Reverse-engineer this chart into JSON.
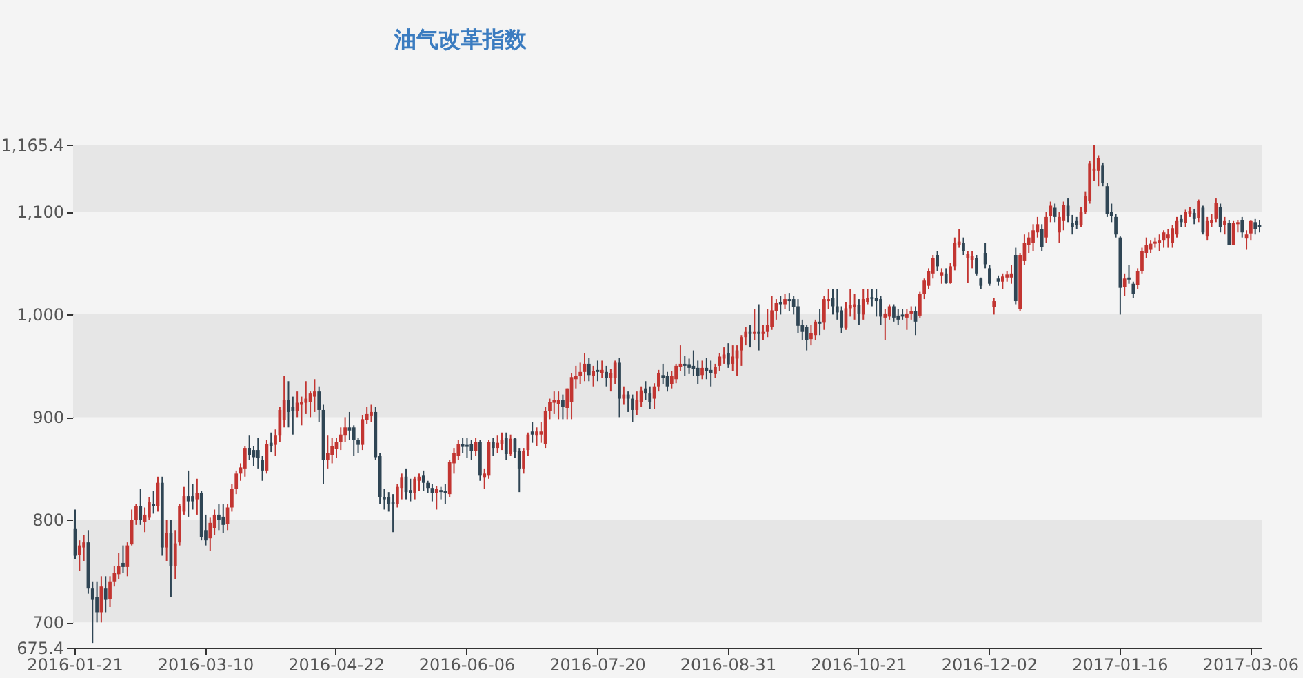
{
  "chart_data": {
    "type": "candlestick",
    "title": "油气改革指数",
    "categories": [
      "2016-01-21",
      null,
      null,
      null,
      null,
      null,
      null,
      null,
      null,
      null,
      null,
      null,
      null,
      null,
      null,
      null,
      null,
      null,
      null,
      null,
      null,
      null,
      null,
      null,
      null,
      null,
      null,
      null,
      null,
      null,
      "2016-03-10",
      null,
      null,
      null,
      null,
      null,
      null,
      null,
      null,
      null,
      null,
      null,
      null,
      null,
      null,
      null,
      null,
      null,
      null,
      null,
      null,
      null,
      null,
      null,
      null,
      null,
      null,
      null,
      null,
      null,
      "2016-04-22",
      null,
      null,
      null,
      null,
      null,
      null,
      null,
      null,
      null,
      null,
      null,
      null,
      null,
      null,
      null,
      null,
      null,
      null,
      null,
      null,
      null,
      null,
      null,
      null,
      null,
      null,
      null,
      null,
      null,
      "2016-06-06",
      null,
      null,
      null,
      null,
      null,
      null,
      null,
      null,
      null,
      null,
      null,
      null,
      null,
      null,
      null,
      null,
      null,
      null,
      null,
      null,
      null,
      null,
      null,
      null,
      null,
      null,
      null,
      null,
      null,
      "2016-07-20",
      null,
      null,
      null,
      null,
      null,
      null,
      null,
      null,
      null,
      null,
      null,
      null,
      null,
      null,
      null,
      null,
      null,
      null,
      null,
      null,
      null,
      null,
      null,
      null,
      null,
      null,
      null,
      null,
      null,
      "2016-08-31",
      null,
      null,
      null,
      null,
      null,
      null,
      null,
      null,
      null,
      null,
      null,
      null,
      null,
      null,
      null,
      null,
      null,
      null,
      null,
      null,
      null,
      null,
      null,
      null,
      null,
      null,
      null,
      null,
      null,
      "2016-10-21",
      null,
      null,
      null,
      null,
      null,
      null,
      null,
      null,
      null,
      null,
      null,
      null,
      null,
      null,
      null,
      null,
      null,
      null,
      null,
      null,
      null,
      null,
      null,
      null,
      null,
      null,
      null,
      null,
      null,
      "2016-12-02",
      null,
      null,
      null,
      null,
      null,
      null,
      null,
      null,
      null,
      null,
      null,
      null,
      null,
      null,
      null,
      null,
      null,
      null,
      null,
      null,
      null,
      null,
      null,
      null,
      null,
      null,
      null,
      null,
      null,
      "2017-01-16",
      null,
      null,
      null,
      null,
      null,
      null,
      null,
      null,
      null,
      null,
      null,
      null,
      null,
      null,
      null,
      null,
      null,
      null,
      null,
      null,
      null,
      null,
      null,
      null,
      null,
      null,
      null,
      null,
      null,
      "2017-03-06",
      null,
      null
    ],
    "ohlc": [
      [
        791,
        810,
        762,
        765
      ],
      [
        766,
        780,
        750,
        775
      ],
      [
        773,
        785,
        760,
        778
      ],
      [
        778,
        790,
        728,
        733
      ],
      [
        733,
        740,
        680,
        722
      ],
      [
        725,
        740,
        700,
        710
      ],
      [
        710,
        745,
        700,
        735
      ],
      [
        733,
        745,
        710,
        722
      ],
      [
        723,
        745,
        715,
        740
      ],
      [
        740,
        755,
        735,
        748
      ],
      [
        747,
        768,
        742,
        755
      ],
      [
        758,
        775,
        748,
        754
      ],
      [
        754,
        778,
        745,
        775
      ],
      [
        776,
        810,
        775,
        800
      ],
      [
        800,
        815,
        795,
        813
      ],
      [
        813,
        830,
        795,
        800
      ],
      [
        798,
        812,
        788,
        805
      ],
      [
        802,
        822,
        800,
        817
      ],
      [
        815,
        828,
        806,
        813
      ],
      [
        813,
        842,
        808,
        836
      ],
      [
        836,
        842,
        765,
        773
      ],
      [
        773,
        800,
        760,
        787
      ],
      [
        787,
        800,
        725,
        755
      ],
      [
        755,
        790,
        742,
        777
      ],
      [
        778,
        815,
        775,
        813
      ],
      [
        808,
        832,
        805,
        823
      ],
      [
        823,
        848,
        803,
        818
      ],
      [
        823,
        835,
        810,
        818
      ],
      [
        820,
        840,
        805,
        826
      ],
      [
        826,
        828,
        780,
        783
      ],
      [
        790,
        805,
        775,
        780
      ],
      [
        782,
        802,
        770,
        797
      ],
      [
        792,
        810,
        785,
        805
      ],
      [
        805,
        815,
        790,
        800
      ],
      [
        803,
        815,
        787,
        795
      ],
      [
        796,
        815,
        790,
        812
      ],
      [
        812,
        835,
        808,
        830
      ],
      [
        830,
        848,
        825,
        845
      ],
      [
        845,
        855,
        838,
        851
      ],
      [
        850,
        872,
        842,
        870
      ],
      [
        870,
        882,
        858,
        863
      ],
      [
        868,
        872,
        852,
        861
      ],
      [
        868,
        880,
        850,
        860
      ],
      [
        858,
        862,
        838,
        848
      ],
      [
        848,
        878,
        845,
        874
      ],
      [
        875,
        885,
        866,
        872
      ],
      [
        873,
        888,
        862,
        882
      ],
      [
        882,
        910,
        876,
        907
      ],
      [
        897,
        940,
        890,
        917
      ],
      [
        917,
        935,
        890,
        905
      ],
      [
        910,
        920,
        883,
        906
      ],
      [
        906,
        925,
        900,
        914
      ],
      [
        912,
        920,
        892,
        915
      ],
      [
        914,
        935,
        903,
        918
      ],
      [
        915,
        925,
        900,
        923
      ],
      [
        920,
        937,
        905,
        925
      ],
      [
        925,
        930,
        895,
        907
      ],
      [
        907,
        912,
        835,
        858
      ],
      [
        858,
        882,
        850,
        865
      ],
      [
        863,
        880,
        855,
        872
      ],
      [
        869,
        880,
        860,
        876
      ],
      [
        876,
        890,
        868,
        883
      ],
      [
        882,
        900,
        876,
        890
      ],
      [
        890,
        905,
        878,
        887
      ],
      [
        890,
        892,
        862,
        878
      ],
      [
        878,
        880,
        865,
        873
      ],
      [
        873,
        902,
        868,
        898
      ],
      [
        897,
        910,
        893,
        903
      ],
      [
        901,
        912,
        895,
        905
      ],
      [
        905,
        910,
        858,
        861
      ],
      [
        862,
        865,
        815,
        822
      ],
      [
        822,
        830,
        810,
        820
      ],
      [
        822,
        827,
        808,
        815
      ],
      [
        817,
        825,
        788,
        815
      ],
      [
        815,
        835,
        812,
        832
      ],
      [
        831,
        845,
        820,
        841
      ],
      [
        842,
        850,
        820,
        827
      ],
      [
        829,
        840,
        818,
        826
      ],
      [
        826,
        842,
        820,
        840
      ],
      [
        838,
        845,
        828,
        842
      ],
      [
        843,
        848,
        828,
        836
      ],
      [
        836,
        838,
        826,
        831
      ],
      [
        831,
        835,
        818,
        826
      ],
      [
        826,
        833,
        810,
        830
      ],
      [
        829,
        832,
        820,
        827
      ],
      [
        828,
        835,
        815,
        826
      ],
      [
        825,
        858,
        822,
        856
      ],
      [
        855,
        870,
        845,
        865
      ],
      [
        862,
        878,
        858,
        874
      ],
      [
        874,
        880,
        865,
        871
      ],
      [
        873,
        880,
        860,
        871
      ],
      [
        874,
        878,
        858,
        867
      ],
      [
        867,
        880,
        862,
        876
      ],
      [
        876,
        878,
        838,
        843
      ],
      [
        841,
        850,
        830,
        845
      ],
      [
        843,
        878,
        840,
        876
      ],
      [
        876,
        880,
        862,
        870
      ],
      [
        870,
        882,
        865,
        875
      ],
      [
        874,
        885,
        868,
        878
      ],
      [
        880,
        885,
        858,
        864
      ],
      [
        864,
        883,
        862,
        879
      ],
      [
        879,
        880,
        860,
        866
      ],
      [
        867,
        870,
        827,
        850
      ],
      [
        850,
        870,
        845,
        867
      ],
      [
        868,
        885,
        862,
        883
      ],
      [
        886,
        895,
        875,
        883
      ],
      [
        882,
        890,
        872,
        886
      ],
      [
        883,
        895,
        875,
        886
      ],
      [
        874,
        910,
        870,
        906
      ],
      [
        906,
        918,
        898,
        915
      ],
      [
        914,
        925,
        903,
        917
      ],
      [
        913,
        925,
        898,
        917
      ],
      [
        917,
        922,
        898,
        910
      ],
      [
        909,
        928,
        898,
        928
      ],
      [
        915,
        943,
        898,
        939
      ],
      [
        937,
        950,
        928,
        940
      ],
      [
        940,
        953,
        932,
        944
      ],
      [
        944,
        962,
        935,
        952
      ],
      [
        952,
        958,
        935,
        941
      ],
      [
        940,
        950,
        930,
        945
      ],
      [
        946,
        955,
        935,
        944
      ],
      [
        943,
        955,
        938,
        946
      ],
      [
        944,
        950,
        930,
        938
      ],
      [
        938,
        947,
        925,
        943
      ],
      [
        938,
        955,
        932,
        953
      ],
      [
        953,
        958,
        900,
        918
      ],
      [
        918,
        930,
        912,
        922
      ],
      [
        922,
        925,
        905,
        918
      ],
      [
        918,
        922,
        895,
        907
      ],
      [
        907,
        925,
        902,
        917
      ],
      [
        915,
        930,
        910,
        926
      ],
      [
        928,
        935,
        917,
        923
      ],
      [
        923,
        930,
        908,
        915
      ],
      [
        918,
        933,
        908,
        930
      ],
      [
        930,
        946,
        925,
        943
      ],
      [
        941,
        952,
        932,
        938
      ],
      [
        940,
        944,
        925,
        930
      ],
      [
        932,
        945,
        928,
        940
      ],
      [
        937,
        952,
        933,
        950
      ],
      [
        949,
        970,
        945,
        952
      ],
      [
        952,
        960,
        940,
        950
      ],
      [
        951,
        957,
        942,
        948
      ],
      [
        950,
        965,
        940,
        947
      ],
      [
        948,
        955,
        932,
        940
      ],
      [
        941,
        955,
        937,
        948
      ],
      [
        948,
        958,
        937,
        945
      ],
      [
        946,
        955,
        930,
        943
      ],
      [
        942,
        952,
        938,
        949
      ],
      [
        950,
        962,
        945,
        959
      ],
      [
        957,
        968,
        952,
        961
      ],
      [
        962,
        972,
        948,
        951
      ],
      [
        952,
        970,
        945,
        959
      ],
      [
        957,
        970,
        940,
        965
      ],
      [
        965,
        980,
        950,
        978
      ],
      [
        978,
        988,
        970,
        983
      ],
      [
        983,
        990,
        968,
        981
      ],
      [
        981,
        1005,
        975,
        983
      ],
      [
        983,
        1010,
        965,
        981
      ],
      [
        981,
        990,
        975,
        983
      ],
      [
        983,
        1005,
        978,
        990
      ],
      [
        988,
        1018,
        985,
        1004
      ],
      [
        1003,
        1015,
        995,
        1011
      ],
      [
        1012,
        1018,
        1000,
        1010
      ],
      [
        1010,
        1020,
        1005,
        1015
      ],
      [
        1015,
        1021,
        1003,
        1013
      ],
      [
        1015,
        1018,
        1000,
        1007
      ],
      [
        1008,
        1015,
        982,
        989
      ],
      [
        990,
        995,
        975,
        983
      ],
      [
        988,
        990,
        965,
        975
      ],
      [
        976,
        990,
        970,
        982
      ],
      [
        980,
        995,
        975,
        993
      ],
      [
        993,
        1005,
        980,
        991
      ],
      [
        992,
        1018,
        985,
        1015
      ],
      [
        1013,
        1025,
        1005,
        1015
      ],
      [
        1016,
        1025,
        1000,
        1008
      ],
      [
        1008,
        1025,
        995,
        1002
      ],
      [
        1004,
        1008,
        982,
        987
      ],
      [
        987,
        1012,
        985,
        1006
      ],
      [
        1006,
        1025,
        998,
        1009
      ],
      [
        1007,
        1020,
        995,
        1010
      ],
      [
        1009,
        1015,
        990,
        1001
      ],
      [
        1000,
        1025,
        995,
        1015
      ],
      [
        1012,
        1025,
        1010,
        1016
      ],
      [
        1017,
        1025,
        1008,
        1015
      ],
      [
        1016,
        1025,
        998,
        1013
      ],
      [
        1015,
        1018,
        990,
        998
      ],
      [
        997,
        1005,
        975,
        1001
      ],
      [
        998,
        1010,
        995,
        1008
      ],
      [
        1008,
        1010,
        993,
        997
      ],
      [
        999,
        1005,
        990,
        995
      ],
      [
        1000,
        1005,
        995,
        998
      ],
      [
        997,
        1005,
        985,
        1001
      ],
      [
        1001,
        1008,
        995,
        1003
      ],
      [
        1003,
        1008,
        980,
        993
      ],
      [
        999,
        1022,
        997,
        1020
      ],
      [
        1020,
        1035,
        1015,
        1033
      ],
      [
        1028,
        1045,
        1025,
        1042
      ],
      [
        1040,
        1058,
        1035,
        1055
      ],
      [
        1058,
        1062,
        1042,
        1047
      ],
      [
        1038,
        1045,
        1030,
        1041
      ],
      [
        1040,
        1045,
        1030,
        1031
      ],
      [
        1031,
        1050,
        1030,
        1047
      ],
      [
        1047,
        1075,
        1043,
        1070
      ],
      [
        1068,
        1083,
        1065,
        1071
      ],
      [
        1070,
        1075,
        1058,
        1062
      ],
      [
        1055,
        1062,
        1031,
        1059
      ],
      [
        1053,
        1062,
        1045,
        1057
      ],
      [
        1055,
        1058,
        1038,
        1040
      ],
      [
        1035,
        1036,
        1025,
        1028
      ],
      [
        1060,
        1070,
        1045,
        1049
      ],
      [
        1045,
        1048,
        1028,
        1030
      ],
      [
        1007,
        1016,
        1000,
        1013
      ],
      [
        1035,
        1038,
        1028,
        1032
      ],
      [
        1032,
        1040,
        1025,
        1037
      ],
      [
        1036,
        1042,
        1032,
        1039
      ],
      [
        1036,
        1048,
        1030,
        1040
      ],
      [
        1058,
        1065,
        1010,
        1013
      ],
      [
        1005,
        1060,
        1003,
        1058
      ],
      [
        1052,
        1078,
        1048,
        1070
      ],
      [
        1068,
        1080,
        1060,
        1075
      ],
      [
        1070,
        1088,
        1062,
        1082
      ],
      [
        1080,
        1095,
        1075,
        1088
      ],
      [
        1083,
        1088,
        1062,
        1066
      ],
      [
        1075,
        1100,
        1070,
        1095
      ],
      [
        1096,
        1110,
        1090,
        1106
      ],
      [
        1104,
        1108,
        1090,
        1095
      ],
      [
        1080,
        1100,
        1070,
        1095
      ],
      [
        1091,
        1110,
        1082,
        1107
      ],
      [
        1106,
        1113,
        1090,
        1096
      ],
      [
        1089,
        1097,
        1078,
        1085
      ],
      [
        1091,
        1095,
        1083,
        1087
      ],
      [
        1087,
        1105,
        1085,
        1100
      ],
      [
        1100,
        1120,
        1098,
        1115
      ],
      [
        1111,
        1150,
        1108,
        1147
      ],
      [
        1140,
        1165,
        1130,
        1142
      ],
      [
        1140,
        1155,
        1125,
        1152
      ],
      [
        1145,
        1148,
        1125,
        1128
      ],
      [
        1125,
        1128,
        1095,
        1098
      ],
      [
        1100,
        1108,
        1090,
        1096
      ],
      [
        1095,
        1098,
        1075,
        1078
      ],
      [
        1075,
        1076,
        1000,
        1026
      ],
      [
        1027,
        1040,
        1018,
        1035
      ],
      [
        1036,
        1048,
        1030,
        1034
      ],
      [
        1030,
        1032,
        1016,
        1020
      ],
      [
        1029,
        1045,
        1025,
        1042
      ],
      [
        1042,
        1065,
        1040,
        1062
      ],
      [
        1060,
        1075,
        1055,
        1068
      ],
      [
        1063,
        1072,
        1060,
        1069
      ],
      [
        1069,
        1075,
        1065,
        1071
      ],
      [
        1070,
        1078,
        1062,
        1072
      ],
      [
        1072,
        1082,
        1065,
        1080
      ],
      [
        1074,
        1083,
        1065,
        1078
      ],
      [
        1070,
        1087,
        1065,
        1084
      ],
      [
        1078,
        1095,
        1075,
        1091
      ],
      [
        1093,
        1097,
        1085,
        1090
      ],
      [
        1089,
        1102,
        1085,
        1100
      ],
      [
        1098,
        1105,
        1095,
        1101
      ],
      [
        1099,
        1103,
        1088,
        1093
      ],
      [
        1094,
        1112,
        1090,
        1111
      ],
      [
        1104,
        1106,
        1078,
        1080
      ],
      [
        1076,
        1095,
        1072,
        1091
      ],
      [
        1089,
        1098,
        1085,
        1092
      ],
      [
        1093,
        1113,
        1090,
        1109
      ],
      [
        1105,
        1108,
        1080,
        1085
      ],
      [
        1087,
        1095,
        1078,
        1091
      ],
      [
        1089,
        1092,
        1068,
        1068
      ],
      [
        1068,
        1091,
        1068,
        1089
      ],
      [
        1088,
        1092,
        1080,
        1090
      ],
      [
        1092,
        1095,
        1075,
        1080
      ],
      [
        1074,
        1082,
        1063,
        1078
      ],
      [
        1079,
        1092,
        1072,
        1091
      ],
      [
        1090,
        1093,
        1078,
        1083
      ],
      [
        1087,
        1092,
        1080,
        1085
      ]
    ],
    "colors": [
      "#2f4554",
      "#c23531",
      "#c23531",
      "#2f4554",
      "#2f4554",
      "#2f4554",
      "#c23531",
      "#2f4554",
      "#c23531",
      "#c23531",
      "#c23531",
      "#2f4554",
      "#c23531",
      "#c23531",
      "#c23531",
      "#2f4554",
      "#c23531",
      "#c23531",
      "#2f4554",
      "#c23531",
      "#2f4554",
      "#c23531",
      "#2f4554",
      "#c23531",
      "#c23531",
      "#c23531",
      "#2f4554",
      "#2f4554",
      "#c23531",
      "#2f4554",
      "#2f4554",
      "#c23531",
      "#c23531",
      "#2f4554",
      "#2f4554",
      "#c23531",
      "#c23531",
      "#c23531",
      "#c23531",
      "#c23531",
      "#2f4554",
      "#2f4554",
      "#2f4554",
      "#2f4554",
      "#c23531",
      "#2f4554",
      "#c23531",
      "#c23531",
      "#c23531",
      "#2f4554",
      "#2f4554",
      "#c23531",
      "#c23531",
      "#c23531",
      "#c23531",
      "#c23531",
      "#2f4554",
      "#2f4554",
      "#c23531",
      "#c23531",
      "#c23531",
      "#c23531",
      "#c23531",
      "#2f4554",
      "#2f4554",
      "#2f4554",
      "#c23531",
      "#c23531",
      "#c23531",
      "#2f4554",
      "#2f4554",
      "#2f4554",
      "#2f4554",
      "#2f4554",
      "#c23531",
      "#c23531",
      "#2f4554",
      "#2f4554",
      "#c23531",
      "#c23531",
      "#2f4554",
      "#2f4554",
      "#2f4554",
      "#c23531",
      "#2f4554",
      "#2f4554",
      "#c23531",
      "#c23531",
      "#c23531",
      "#2f4554",
      "#2f4554",
      "#2f4554",
      "#c23531",
      "#2f4554",
      "#c23531",
      "#c23531",
      "#2f4554",
      "#c23531",
      "#c23531",
      "#2f4554",
      "#c23531",
      "#2f4554",
      "#2f4554",
      "#c23531",
      "#c23531",
      "#2f4554",
      "#c23531",
      "#c23531",
      "#c23531",
      "#c23531",
      "#c23531",
      "#c23531",
      "#2f4554",
      "#c23531",
      "#c23531",
      "#c23531",
      "#c23531",
      "#c23531",
      "#2f4554",
      "#c23531",
      "#2f4554",
      "#c23531",
      "#2f4554",
      "#c23531",
      "#c23531",
      "#2f4554",
      "#c23531",
      "#2f4554",
      "#2f4554",
      "#c23531",
      "#c23531",
      "#2f4554",
      "#2f4554",
      "#c23531",
      "#c23531",
      "#2f4554",
      "#2f4554",
      "#c23531",
      "#c23531",
      "#c23531",
      "#2f4554",
      "#2f4554",
      "#2f4554",
      "#2f4554",
      "#c23531",
      "#2f4554",
      "#2f4554",
      "#c23531",
      "#c23531",
      "#c23531",
      "#2f4554",
      "#c23531",
      "#c23531",
      "#c23531",
      "#c23531",
      "#2f4554",
      "#c23531",
      "#2f4554",
      "#c23531",
      "#c23531",
      "#c23531",
      "#c23531",
      "#2f4554",
      "#c23531",
      "#2f4554",
      "#2f4554",
      "#2f4554",
      "#2f4554",
      "#2f4554",
      "#c23531",
      "#c23531",
      "#2f4554",
      "#c23531",
      "#c23531",
      "#2f4554",
      "#2f4554",
      "#2f4554",
      "#c23531",
      "#c23531",
      "#c23531",
      "#2f4554",
      "#c23531",
      "#c23531",
      "#2f4554",
      "#2f4554",
      "#2f4554",
      "#c23531",
      "#c23531",
      "#2f4554",
      "#2f4554",
      "#2f4554",
      "#c23531",
      "#c23531",
      "#2f4554",
      "#c23531",
      "#c23531",
      "#c23531",
      "#c23531",
      "#2f4554",
      "#c23531",
      "#2f4554",
      "#c23531",
      "#c23531",
      "#c23531",
      "#2f4554",
      "#c23531",
      "#c23531",
      "#2f4554",
      "#2f4554",
      "#2f4554",
      "#2f4554",
      "#c23531",
      "#2f4554",
      "#c23531",
      "#c23531",
      "#c23531",
      "#2f4554",
      "#c23531",
      "#c23531",
      "#c23531",
      "#c23531",
      "#c23531",
      "#2f4554",
      "#c23531",
      "#c23531",
      "#2f4554",
      "#c23531",
      "#c23531",
      "#2f4554",
      "#2f4554",
      "#2f4554",
      "#c23531",
      "#c23531",
      "#c23531",
      "#c23531",
      "#c23531",
      "#2f4554",
      "#2f4554",
      "#2f4554",
      "#2f4554",
      "#2f4554",
      "#c23531",
      "#2f4554",
      "#2f4554",
      "#c23531",
      "#c23531",
      "#c23531",
      "#c23531",
      "#c23531",
      "#c23531",
      "#c23531",
      "#c23531",
      "#c23531",
      "#c23531",
      "#2f4554",
      "#c23531",
      "#c23531",
      "#2f4554",
      "#c23531",
      "#2f4554",
      "#c23531",
      "#c23531",
      "#c23531",
      "#2f4554",
      "#c23531",
      "#2f4554",
      "#c23531",
      "#c23531",
      "#2f4554",
      "#c23531",
      "#c23531",
      "#2f4554",
      "#2f4554"
    ],
    "ylim": [
      675.4,
      1165.4
    ],
    "yticks": [
      675.4,
      700,
      800,
      900,
      {
        "value": 1000,
        "label": "1,000"
      },
      {
        "value": 1100,
        "label": "1,100"
      },
      {
        "value": 1165.4,
        "label": "1,165.4"
      }
    ],
    "grid": "y"
  }
}
